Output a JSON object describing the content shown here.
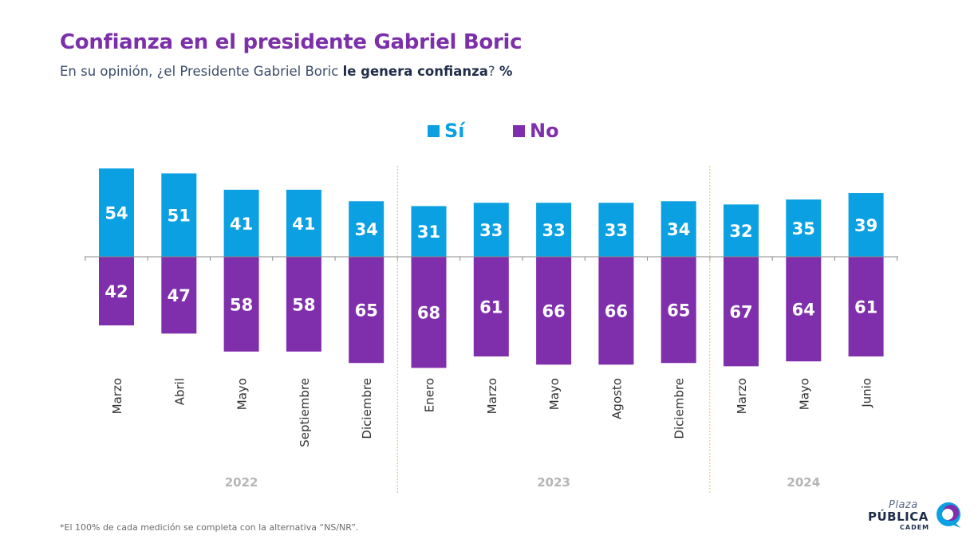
{
  "title": "Confianza en el presidente Gabriel Boric",
  "subtitle": {
    "prefix": "En su opinión, ¿el Presidente Gabriel Boric ",
    "emphasis": "le genera confianza",
    "suffix": "? ",
    "unit": "%"
  },
  "legend": [
    {
      "label": "Sí",
      "color": "#0aa0e2"
    },
    {
      "label": "No",
      "color": "#7f2fab"
    }
  ],
  "footnote": "*El 100% de cada medición se completa con la alternativa “NS/NR”.",
  "logo": {
    "line1": "Plaza",
    "line2": "PÚBLICA",
    "line3": "CADEM"
  },
  "chart_data": {
    "type": "bar",
    "categories": [
      "Marzo",
      "Abril",
      "Mayo",
      "Septiembre",
      "Diciembre",
      "Enero",
      "Marzo",
      "Mayo",
      "Agosto",
      "Diciembre",
      "Marzo",
      "Mayo",
      "Junio"
    ],
    "groups": [
      {
        "label": "2022",
        "count": 5
      },
      {
        "label": "2023",
        "count": 5
      },
      {
        "label": "2024",
        "count": 3
      }
    ],
    "series": [
      {
        "name": "Sí",
        "direction": "up",
        "color": "#0aa0e2",
        "values": [
          54,
          51,
          41,
          41,
          34,
          31,
          33,
          33,
          33,
          34,
          32,
          35,
          39
        ]
      },
      {
        "name": "No",
        "direction": "down",
        "color": "#7f2fab",
        "values": [
          42,
          47,
          58,
          58,
          65,
          68,
          61,
          66,
          66,
          65,
          67,
          64,
          61
        ]
      }
    ],
    "data_labels": true,
    "xlabel": "",
    "ylabel": "",
    "grid": false
  }
}
